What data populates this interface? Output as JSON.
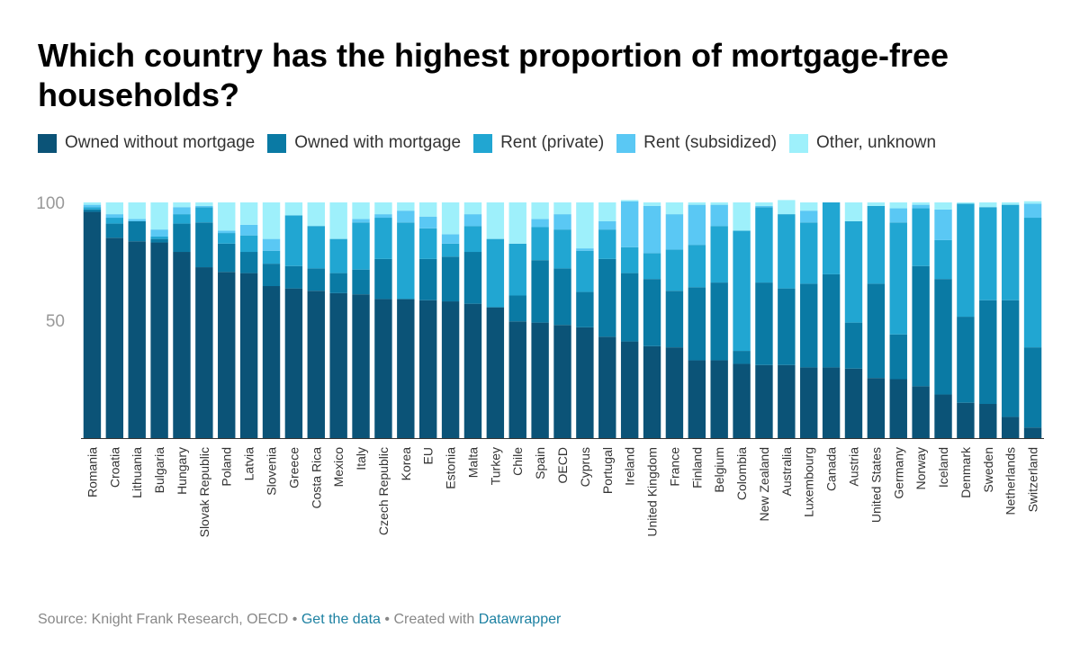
{
  "title": "Which country has the highest proportion of mortgage-free households?",
  "legend": [
    {
      "label": "Owned without mortgage",
      "color": "#0b5377"
    },
    {
      "label": "Owned with mortgage",
      "color": "#0a7aa4"
    },
    {
      "label": "Rent (private)",
      "color": "#21a6d2"
    },
    {
      "label": "Rent (subsidized)",
      "color": "#5ac8f4"
    },
    {
      "label": "Other, unknown",
      "color": "#9ef0fb"
    }
  ],
  "footer": {
    "source": "Source: Knight Frank Research, OECD",
    "bullet1": "•",
    "get_data": "Get the data",
    "bullet2": "•",
    "created_with": "Created with",
    "datawrapper": "Datawrapper"
  },
  "chart_data": {
    "type": "bar",
    "stacked": true,
    "ylim": [
      0,
      100
    ],
    "yticks": [
      50,
      100
    ],
    "grid": false,
    "categories": [
      "Romania",
      "Croatia",
      "Lithuania",
      "Bulgaria",
      "Hungary",
      "Slovak Republic",
      "Poland",
      "Latvia",
      "Slovenia",
      "Greece",
      "Costa Rica",
      "Mexico",
      "Italy",
      "Czech Republic",
      "Korea",
      "EU",
      "Estonia",
      "Malta",
      "Turkey",
      "Chile",
      "Spain",
      "OECD",
      "Cyprus",
      "Portugal",
      "Ireland",
      "United Kingdom",
      "France",
      "Finland",
      "Belgium",
      "Colombia",
      "New Zealand",
      "Australia",
      "Luxembourg",
      "Canada",
      "Austria",
      "United States",
      "Germany",
      "Norway",
      "Iceland",
      "Denmark",
      "Sweden",
      "Netherlands",
      "Switzerland"
    ],
    "series": [
      {
        "name": "Owned without mortgage",
        "color": "#0b5377",
        "values": [
          96,
          85,
          83.5,
          83,
          79,
          72.5,
          70.5,
          70,
          64.5,
          63.5,
          62.5,
          61.5,
          61,
          59,
          59,
          58.5,
          58,
          57,
          55.5,
          49.5,
          49,
          48,
          47,
          43,
          41,
          39,
          38.5,
          33,
          33,
          31.5,
          31,
          31,
          30,
          30,
          29.5,
          25.5,
          25,
          22,
          18.5,
          15,
          14.5,
          9,
          4.5
        ]
      },
      {
        "name": "Owned with mortgage",
        "color": "#0a7aa4",
        "values": [
          1,
          6,
          8.5,
          1.5,
          12,
          19,
          12,
          9,
          9.5,
          9.5,
          9.5,
          8.5,
          10.5,
          17,
          0,
          17.5,
          19,
          22,
          0,
          11,
          26.5,
          24,
          15,
          33,
          29,
          28.5,
          24,
          31,
          33,
          5.5,
          35,
          32.5,
          35.5,
          39.5,
          19.5,
          40,
          19,
          51,
          49,
          36.5,
          44,
          49.5,
          34
        ]
      },
      {
        "name": "Rent (private)",
        "color": "#21a6d2",
        "values": [
          1,
          2.5,
          0,
          1,
          4,
          6.5,
          4.5,
          7,
          5.5,
          21.5,
          18,
          14.5,
          20,
          17.5,
          32.5,
          13,
          5.5,
          11,
          29,
          22,
          14,
          16.5,
          17.5,
          12.5,
          11,
          11,
          17.5,
          18,
          24,
          51,
          32,
          31.5,
          26,
          30.5,
          43,
          33,
          47.5,
          24.5,
          16.5,
          48,
          39.5,
          40.5,
          55
        ]
      },
      {
        "name": "Rent (subsidized)",
        "color": "#5ac8f4",
        "values": [
          1,
          1.5,
          1,
          3,
          3,
          0.5,
          1,
          4.5,
          5,
          0,
          0,
          0,
          1.5,
          1.5,
          5,
          5,
          4,
          5,
          0,
          0,
          3.5,
          6.5,
          1,
          3.5,
          19.5,
          20,
          15,
          17,
          9,
          0,
          0.5,
          0,
          5,
          0,
          0,
          0,
          6,
          1.5,
          13,
          0,
          0,
          0,
          6
        ]
      },
      {
        "name": "Other, unknown",
        "color": "#9ef0fb",
        "values": [
          1,
          5,
          7,
          11.5,
          2,
          1.5,
          12,
          9.5,
          15.5,
          5.5,
          10,
          15.5,
          7,
          5,
          3.5,
          6,
          13.5,
          5,
          15.5,
          17.5,
          7,
          5,
          19.5,
          8,
          0.5,
          1.5,
          5,
          1,
          1,
          12,
          1.5,
          6,
          3.5,
          0,
          8,
          1.5,
          2.5,
          1,
          3,
          0.5,
          2,
          1,
          1
        ]
      }
    ]
  }
}
